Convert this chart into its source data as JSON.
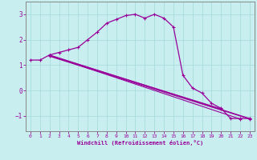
{
  "background_color": "#c8eef0",
  "line_color": "#990099",
  "grid_color": "#aadddd",
  "xlabel": "Windchill (Refroidissement éolien,°C)",
  "xlabel_color": "#990099",
  "tick_color": "#990099",
  "spine_color": "#888888",
  "xlim": [
    -0.5,
    23.5
  ],
  "ylim": [
    -1.6,
    3.5
  ],
  "yticks": [
    -1,
    0,
    1,
    2,
    3
  ],
  "xticks": [
    0,
    1,
    2,
    3,
    4,
    5,
    6,
    7,
    8,
    9,
    10,
    11,
    12,
    13,
    14,
    15,
    16,
    17,
    18,
    19,
    20,
    21,
    22,
    23
  ],
  "curve1_x": [
    0,
    1,
    2,
    3,
    4,
    5,
    6,
    7,
    8,
    9,
    10,
    11,
    12,
    13,
    14,
    15,
    16,
    17,
    18,
    19,
    20,
    21,
    22,
    23
  ],
  "curve1_y": [
    1.2,
    1.2,
    1.4,
    1.5,
    1.6,
    1.7,
    2.0,
    2.3,
    2.65,
    2.8,
    2.95,
    3.0,
    2.85,
    3.0,
    2.85,
    2.5,
    0.6,
    0.1,
    -0.1,
    -0.5,
    -0.7,
    -1.1,
    -1.1,
    -1.1
  ],
  "lines": [
    {
      "x": [
        2,
        23
      ],
      "y": [
        1.4,
        -1.1
      ]
    },
    {
      "x": [
        2,
        23
      ],
      "y": [
        1.35,
        -1.12
      ]
    },
    {
      "x": [
        2,
        22
      ],
      "y": [
        1.38,
        -1.12
      ]
    },
    {
      "x": [
        2,
        20
      ],
      "y": [
        1.38,
        -0.72
      ]
    }
  ]
}
